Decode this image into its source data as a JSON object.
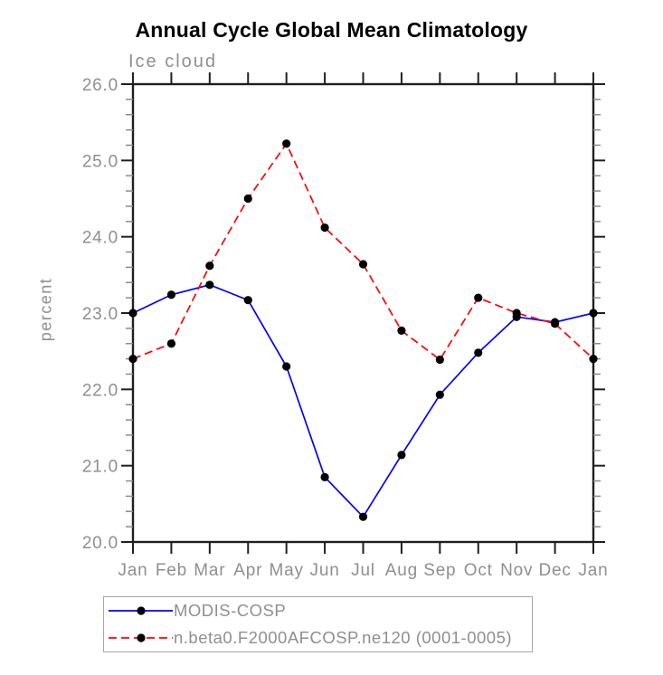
{
  "chart_data": {
    "type": "line",
    "title": "Annual Cycle Global Mean Climatology",
    "subtitle": "Ice cloud",
    "ylabel": "percent",
    "xlabel": "",
    "x_tick_labels": [
      "Jan",
      "Feb",
      "Mar",
      "Apr",
      "May",
      "Jun",
      "Jul",
      "Aug",
      "Sep",
      "Oct",
      "Nov",
      "Dec",
      "Jan"
    ],
    "y_ticks": [
      20.0,
      21.0,
      22.0,
      23.0,
      24.0,
      25.0,
      26.0
    ],
    "y_tick_labels": [
      "20.0",
      "21.0",
      "22.0",
      "23.0",
      "24.0",
      "25.0",
      "26.0"
    ],
    "ylim": [
      20.0,
      26.0
    ],
    "y_minor_step": 0.2,
    "grid": false,
    "legend_position": "bottom-left",
    "colors": {
      "axis": "#1f1f1f",
      "minor_tick": "#8a8a8a",
      "text": "#8f8f8f",
      "marker": "#000000",
      "series_blue": "#0000ff",
      "series_red": "#ff0000"
    },
    "series": [
      {
        "name": "MODIS-COSP",
        "color": "#0000ff",
        "line_style": "solid",
        "marker": "circle",
        "values": [
          23.0,
          23.24,
          23.37,
          23.17,
          22.3,
          20.85,
          20.33,
          21.14,
          21.93,
          22.48,
          22.95,
          22.88,
          23.0
        ]
      },
      {
        "name": "n.beta0.F2000AFCOSP.ne120 (0001-0005)",
        "color": "#ff0000",
        "line_style": "dashed",
        "marker": "circle",
        "values": [
          22.4,
          22.6,
          23.62,
          24.5,
          25.22,
          24.12,
          23.64,
          22.77,
          22.39,
          23.2,
          23.0,
          22.86,
          22.4
        ]
      }
    ]
  }
}
